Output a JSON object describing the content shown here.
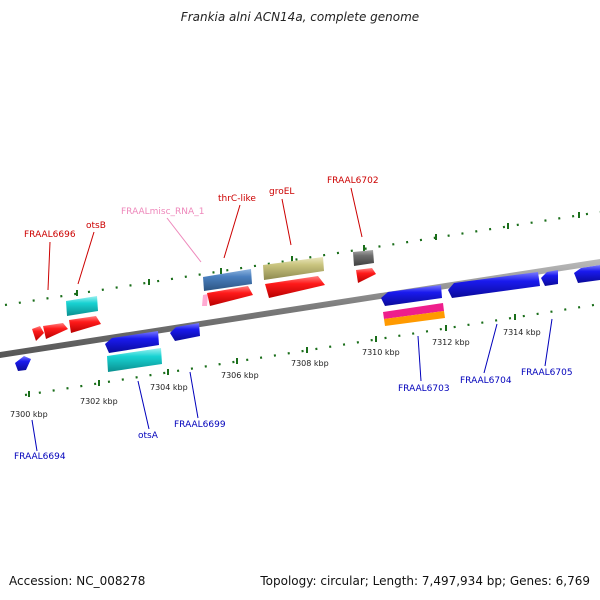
{
  "title": "Frankia alni ACN14a, complete genome",
  "accession": "Accession: NC_008278",
  "summary": "Topology: circular; Length: 7,497,934 bp; Genes: 6,769",
  "colors": {
    "red": "#ff1a1a",
    "cyan": "#19d3d3",
    "blue": "#1a1aee",
    "steelblue": "#4a7fbf",
    "khaki": "#c9c47e",
    "gray": "#6e6e6e",
    "magenta": "#ee1e8c",
    "orange": "#ff9a00",
    "pink": "#ffaad2",
    "label_red": "#cc0000",
    "label_blue": "#0000bb",
    "label_pink": "#ee88bb",
    "tick_green": "#1a6e1a"
  },
  "tick_labels": [
    "7300 kbp",
    "7302 kbp",
    "7304 kbp",
    "7306 kbp",
    "7308 kbp",
    "7310 kbp",
    "7312 kbp",
    "7314 kbp"
  ],
  "gene_labels": {
    "fraal6696": "FRAAL6696",
    "otsb": "otsB",
    "fraalmisc": "FRAALmisc_RNA_1",
    "thrc": "thrC-like",
    "groel": "groEL",
    "fraal6702": "FRAAL6702",
    "fraal6694": "FRAAL6694",
    "fraal6699": "FRAAL6699",
    "otsa": "otsA",
    "fraal6703": "FRAAL6703",
    "fraal6704": "FRAAL6704",
    "fraal6705": "FRAAL6705"
  }
}
